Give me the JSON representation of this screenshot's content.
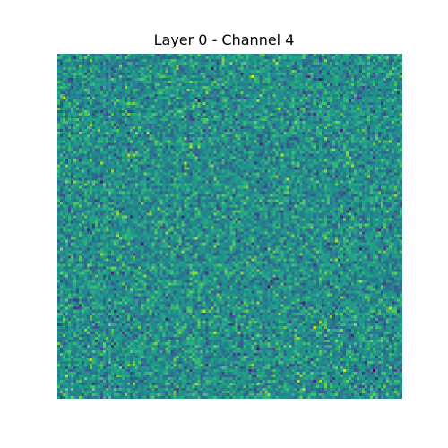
{
  "chart_data": {
    "type": "heatmap",
    "title": "Layer 0 - Channel 4",
    "xlabel": "",
    "ylabel": "",
    "axes": "off",
    "grid": false,
    "legend": "none",
    "colormap": "viridis",
    "rows": 128,
    "cols": 128,
    "value_range": [
      -4,
      4
    ],
    "distribution": "approximately normal noise centered near 0",
    "colors": {
      "background": "#ffffff",
      "dominant": "#21918c",
      "low": "#440154",
      "high": "#fde725"
    }
  }
}
